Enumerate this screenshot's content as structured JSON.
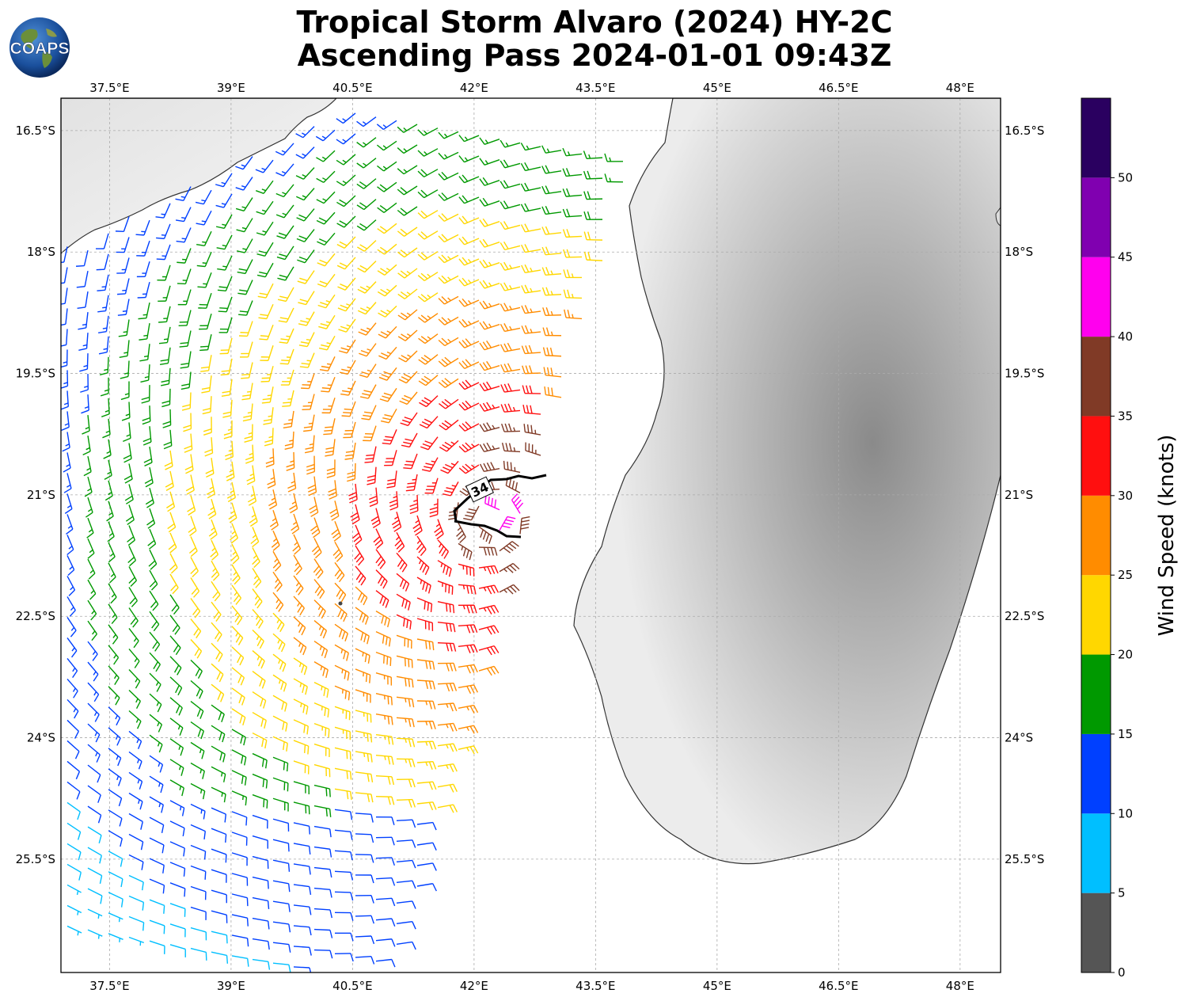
{
  "header": {
    "title_line1": "Tropical Storm Alvaro (2024) HY-2C",
    "title_line2": "Ascending Pass 2024-01-01 09:43Z"
  },
  "logo": {
    "text": "COAPS",
    "icon": "globe-logo-icon"
  },
  "map": {
    "lon_ticks": [
      "37.5°E",
      "39°E",
      "40.5°E",
      "42°E",
      "43.5°E",
      "45°E",
      "46.5°E",
      "48°E"
    ],
    "lat_ticks": [
      "16.5°S",
      "18°S",
      "19.5°S",
      "21°S",
      "22.5°S",
      "24°S",
      "25.5°S"
    ],
    "lon_range": [
      36.9,
      48.5
    ],
    "lat_range": [
      -26.9,
      -16.1
    ],
    "gridlines": true,
    "land_name": "Madagascar",
    "storm_center": {
      "lon": 42.2,
      "lat": -21.3
    },
    "contour_label": "34",
    "contour_color": "#000000"
  },
  "colorbar": {
    "label": "Wind Speed (knots)",
    "ticks": [
      "0",
      "5",
      "10",
      "15",
      "20",
      "25",
      "30",
      "35",
      "40",
      "45",
      "50"
    ],
    "bins": [
      {
        "from": 0,
        "to": 5,
        "color": "#555555"
      },
      {
        "from": 5,
        "to": 10,
        "color": "#00bfff"
      },
      {
        "from": 10,
        "to": 15,
        "color": "#0040ff"
      },
      {
        "from": 15,
        "to": 20,
        "color": "#009900"
      },
      {
        "from": 20,
        "to": 25,
        "color": "#ffd700"
      },
      {
        "from": 25,
        "to": 30,
        "color": "#ff8c00"
      },
      {
        "from": 30,
        "to": 35,
        "color": "#ff0f0f"
      },
      {
        "from": 35,
        "to": 40,
        "color": "#803a26"
      },
      {
        "from": 40,
        "to": 45,
        "color": "#ff00ee"
      },
      {
        "from": 45,
        "to": 50,
        "color": "#8000b0"
      },
      {
        "from": 50,
        "to": 55,
        "color": "#2a0060"
      }
    ]
  }
}
